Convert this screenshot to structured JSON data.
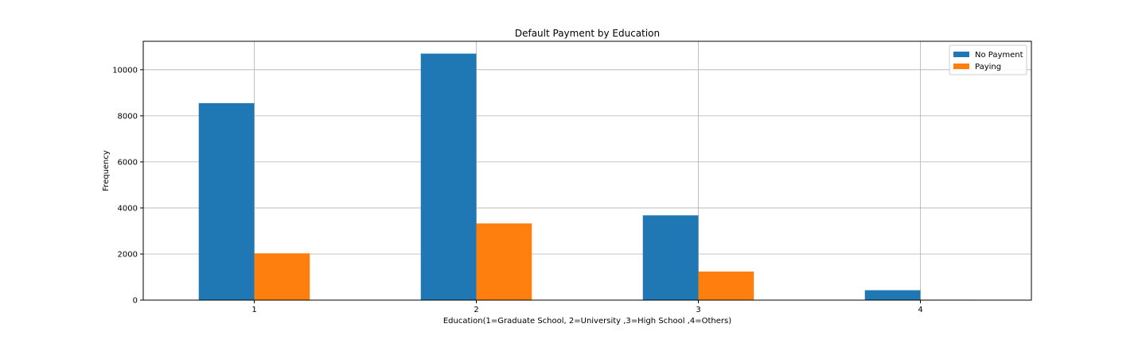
{
  "chart_data": {
    "type": "bar",
    "title": "Default Payment by Education",
    "xlabel": "Education(1=Graduate School, 2=University ,3=High School ,4=Others)",
    "ylabel": "Frequency",
    "categories": [
      "1",
      "2",
      "3",
      "4"
    ],
    "series": [
      {
        "name": "No Payment",
        "color": "#1f77b4",
        "values": [
          8550,
          10700,
          3680,
          430
        ]
      },
      {
        "name": "Paying",
        "color": "#ff7f0e",
        "values": [
          2030,
          3330,
          1240,
          20
        ]
      }
    ],
    "ylim": [
      0,
      11235
    ],
    "yticks": [
      0,
      2000,
      4000,
      6000,
      8000,
      10000
    ],
    "grid": true,
    "legend_position": "top-right"
  }
}
